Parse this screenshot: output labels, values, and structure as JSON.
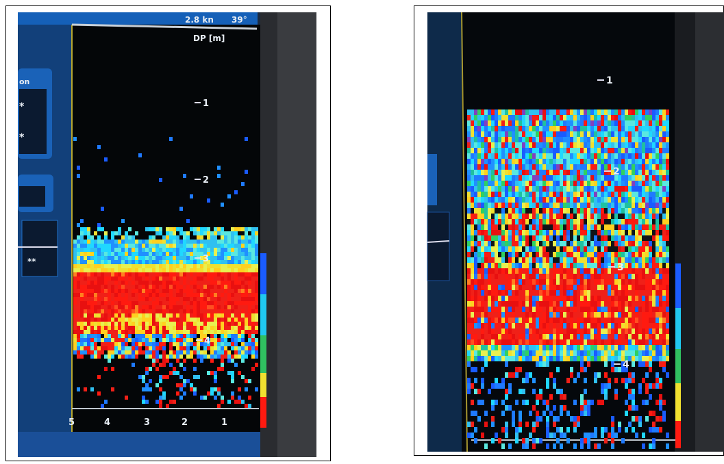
{
  "left": {
    "speed": "2.8 kn",
    "angle": "39°",
    "depth_unit": "DP [m]",
    "panel_label": "on",
    "panel_marks": [
      "*",
      "*",
      "**"
    ],
    "depth_labels": [
      "1",
      "2",
      "3",
      "4"
    ],
    "range_labels": [
      "5",
      "4",
      "3",
      "2",
      "1"
    ]
  },
  "right": {
    "depth_labels": [
      "1",
      "2",
      "3",
      "4"
    ]
  }
}
